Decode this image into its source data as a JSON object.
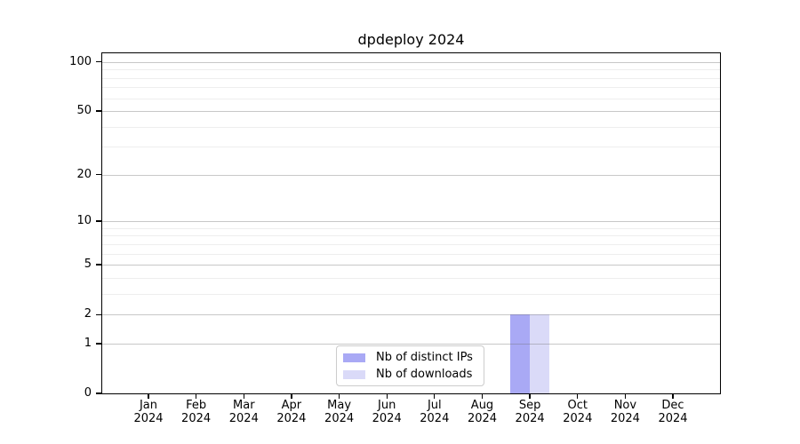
{
  "figure": {
    "background": "#ffffff"
  },
  "chart_data": {
    "type": "bar",
    "title": "dpdeploy 2024",
    "categories": [
      "Jan",
      "Feb",
      "Mar",
      "Apr",
      "May",
      "Jun",
      "Jul",
      "Aug",
      "Sep",
      "Oct",
      "Nov",
      "Dec"
    ],
    "category_year": "2024",
    "series": [
      {
        "name": "Nb of distinct IPs",
        "color": "#a9a9f5",
        "values": [
          0,
          0,
          0,
          0,
          0,
          0,
          0,
          0,
          2,
          0,
          0,
          0
        ]
      },
      {
        "name": "Nb of downloads",
        "color": "#dadaf8",
        "values": [
          0,
          0,
          0,
          0,
          0,
          0,
          0,
          0,
          2,
          0,
          0,
          0
        ]
      }
    ],
    "xlabel": "",
    "ylabel": "",
    "y_scale": "log1p",
    "y_ticks": [
      0,
      1,
      2,
      5,
      10,
      20,
      50,
      100
    ],
    "y_minor_ticks": [
      3,
      4,
      6,
      7,
      8,
      9,
      30,
      40,
      60,
      70,
      80,
      90
    ],
    "ylim": [
      0,
      113
    ],
    "grid": true,
    "legend_position": "lower-center"
  },
  "colors": {
    "axis": "#000000",
    "major_grid": "#c8c8c8",
    "minor_grid": "#efefef"
  }
}
